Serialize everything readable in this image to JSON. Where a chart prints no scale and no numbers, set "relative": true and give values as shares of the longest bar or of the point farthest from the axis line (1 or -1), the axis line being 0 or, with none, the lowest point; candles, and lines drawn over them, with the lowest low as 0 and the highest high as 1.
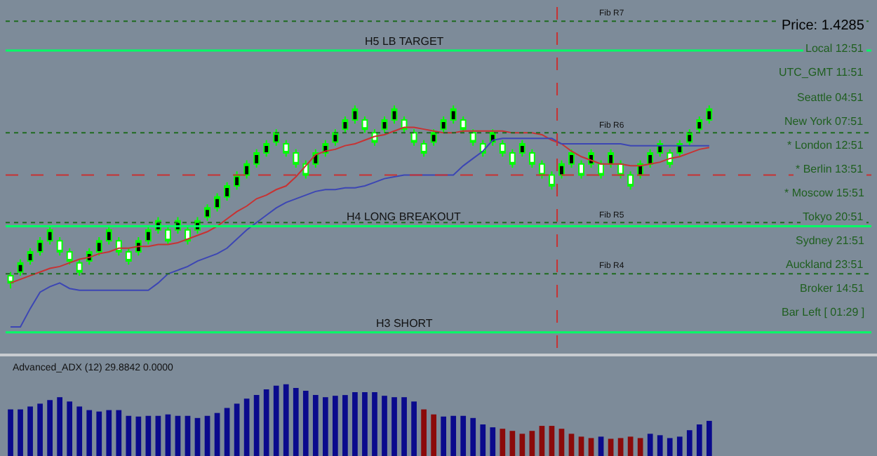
{
  "chart_data": [
    {
      "type": "candlestick",
      "relative": true,
      "categories": [
        null,
        null,
        null,
        null,
        null,
        null,
        null,
        null,
        null,
        null,
        null,
        null,
        null,
        null,
        null,
        null,
        null,
        null,
        null,
        null,
        null,
        null,
        null,
        null,
        null,
        null,
        null,
        null,
        null,
        null,
        null,
        null,
        null,
        null,
        null,
        null,
        null,
        null,
        null,
        null,
        null,
        null,
        null,
        null,
        null,
        null,
        null,
        null,
        null,
        null,
        null,
        null,
        null,
        null,
        null,
        null,
        null,
        null,
        null,
        null,
        null,
        null,
        null,
        null,
        null,
        null,
        null,
        null,
        null,
        null,
        null,
        null
      ],
      "ohlc": [
        [
          0.07,
          0.09,
          0.0,
          0.03
        ],
        [
          0.09,
          0.16,
          0.07,
          0.14
        ],
        [
          0.15,
          0.22,
          0.13,
          0.2
        ],
        [
          0.2,
          0.28,
          0.18,
          0.26
        ],
        [
          0.26,
          0.34,
          0.24,
          0.32
        ],
        [
          0.26,
          0.28,
          0.18,
          0.2
        ],
        [
          0.2,
          0.22,
          0.13,
          0.15
        ],
        [
          0.14,
          0.16,
          0.07,
          0.09
        ],
        [
          0.15,
          0.22,
          0.13,
          0.2
        ],
        [
          0.2,
          0.28,
          0.18,
          0.26
        ],
        [
          0.26,
          0.34,
          0.24,
          0.32
        ],
        [
          0.26,
          0.28,
          0.18,
          0.2
        ],
        [
          0.2,
          0.22,
          0.13,
          0.15
        ],
        [
          0.2,
          0.28,
          0.18,
          0.26
        ],
        [
          0.26,
          0.34,
          0.24,
          0.32
        ],
        [
          0.32,
          0.39,
          0.3,
          0.37
        ],
        [
          0.32,
          0.34,
          0.24,
          0.26
        ],
        [
          0.32,
          0.39,
          0.3,
          0.37
        ],
        [
          0.32,
          0.34,
          0.24,
          0.26
        ],
        [
          0.32,
          0.39,
          0.3,
          0.37
        ],
        [
          0.39,
          0.46,
          0.37,
          0.44
        ],
        [
          0.44,
          0.52,
          0.42,
          0.5
        ],
        [
          0.5,
          0.58,
          0.48,
          0.56
        ],
        [
          0.56,
          0.64,
          0.54,
          0.62
        ],
        [
          0.62,
          0.7,
          0.6,
          0.68
        ],
        [
          0.68,
          0.76,
          0.66,
          0.74
        ],
        [
          0.74,
          0.81,
          0.72,
          0.79
        ],
        [
          0.8,
          0.87,
          0.78,
          0.85
        ],
        [
          0.79,
          0.81,
          0.72,
          0.74
        ],
        [
          0.74,
          0.76,
          0.66,
          0.68
        ],
        [
          0.68,
          0.7,
          0.6,
          0.62
        ],
        [
          0.68,
          0.76,
          0.66,
          0.74
        ],
        [
          0.74,
          0.81,
          0.72,
          0.79
        ],
        [
          0.8,
          0.87,
          0.78,
          0.85
        ],
        [
          0.87,
          0.94,
          0.85,
          0.92
        ],
        [
          0.92,
          1.0,
          0.9,
          0.98
        ],
        [
          0.92,
          0.94,
          0.85,
          0.87
        ],
        [
          0.85,
          0.87,
          0.78,
          0.8
        ],
        [
          0.87,
          0.94,
          0.85,
          0.92
        ],
        [
          0.92,
          1.0,
          0.9,
          0.98
        ],
        [
          0.92,
          0.94,
          0.85,
          0.87
        ],
        [
          0.85,
          0.87,
          0.78,
          0.8
        ],
        [
          0.79,
          0.81,
          0.72,
          0.74
        ],
        [
          0.8,
          0.87,
          0.78,
          0.85
        ],
        [
          0.87,
          0.94,
          0.85,
          0.92
        ],
        [
          0.92,
          1.0,
          0.9,
          0.98
        ],
        [
          0.92,
          0.94,
          0.85,
          0.87
        ],
        [
          0.85,
          0.87,
          0.78,
          0.8
        ],
        [
          0.79,
          0.81,
          0.72,
          0.74
        ],
        [
          0.8,
          0.87,
          0.78,
          0.85
        ],
        [
          0.79,
          0.81,
          0.72,
          0.74
        ],
        [
          0.74,
          0.76,
          0.66,
          0.68
        ],
        [
          0.74,
          0.81,
          0.72,
          0.79
        ],
        [
          0.74,
          0.76,
          0.66,
          0.68
        ],
        [
          0.68,
          0.7,
          0.6,
          0.62
        ],
        [
          0.62,
          0.64,
          0.54,
          0.56
        ],
        [
          0.62,
          0.7,
          0.6,
          0.68
        ],
        [
          0.68,
          0.76,
          0.66,
          0.74
        ],
        [
          0.68,
          0.7,
          0.6,
          0.62
        ],
        [
          0.68,
          0.76,
          0.66,
          0.74
        ],
        [
          0.68,
          0.7,
          0.6,
          0.62
        ],
        [
          0.68,
          0.76,
          0.66,
          0.74
        ],
        [
          0.68,
          0.7,
          0.6,
          0.62
        ],
        [
          0.62,
          0.64,
          0.54,
          0.56
        ],
        [
          0.62,
          0.7,
          0.6,
          0.68
        ],
        [
          0.68,
          0.76,
          0.66,
          0.74
        ],
        [
          0.74,
          0.81,
          0.72,
          0.79
        ],
        [
          0.74,
          0.76,
          0.66,
          0.68
        ],
        [
          0.74,
          0.81,
          0.72,
          0.79
        ],
        [
          0.8,
          0.87,
          0.78,
          0.85
        ],
        [
          0.87,
          0.94,
          0.85,
          0.92
        ],
        [
          0.92,
          1.0,
          0.9,
          0.98
        ]
      ],
      "series": [
        {
          "type": "line",
          "color": "#c83232",
          "values": [
            0.03,
            0.05,
            0.07,
            0.09,
            0.11,
            0.12,
            0.14,
            0.16,
            0.17,
            0.19,
            0.2,
            0.22,
            0.22,
            0.23,
            0.23,
            0.24,
            0.24,
            0.25,
            0.27,
            0.29,
            0.31,
            0.34,
            0.38,
            0.42,
            0.45,
            0.49,
            0.51,
            0.54,
            0.56,
            0.61,
            0.67,
            0.73,
            0.75,
            0.76,
            0.78,
            0.79,
            0.81,
            0.83,
            0.84,
            0.86,
            0.88,
            0.88,
            0.87,
            0.86,
            0.85,
            0.85,
            0.86,
            0.86,
            0.86,
            0.86,
            0.86,
            0.85,
            0.85,
            0.85,
            0.84,
            0.81,
            0.79,
            0.75,
            0.72,
            0.7,
            0.68,
            0.68,
            0.68,
            0.67,
            0.67,
            0.68,
            0.69,
            0.71,
            0.72,
            0.74,
            0.76,
            0.77
          ]
        },
        {
          "type": "line",
          "color": "#3c46b4",
          "values": [
            -0.21,
            -0.21,
            -0.11,
            -0.02,
            0.01,
            0.03,
            0.0,
            -0.01,
            -0.01,
            -0.01,
            -0.01,
            -0.01,
            -0.01,
            -0.01,
            -0.01,
            0.03,
            0.08,
            0.1,
            0.12,
            0.15,
            0.17,
            0.19,
            0.22,
            0.27,
            0.32,
            0.36,
            0.4,
            0.44,
            0.47,
            0.49,
            0.51,
            0.53,
            0.54,
            0.54,
            0.55,
            0.55,
            0.56,
            0.58,
            0.6,
            0.61,
            0.62,
            0.62,
            0.62,
            0.62,
            0.62,
            0.62,
            0.67,
            0.71,
            0.75,
            0.81,
            0.82,
            0.82,
            0.82,
            0.82,
            0.82,
            0.82,
            0.79,
            0.79,
            0.79,
            0.79,
            0.79,
            0.79,
            0.79,
            0.78,
            0.78,
            0.78,
            0.78,
            0.78,
            0.78,
            0.78,
            0.78,
            0.78
          ]
        }
      ],
      "ref_lines": [
        {
          "axis": "y",
          "value": 1.3,
          "label": "H5 LB TARGET",
          "color": "#00ff66",
          "line_style": "solid"
        },
        {
          "axis": "y",
          "value": 0.34,
          "label": "H4 LONG BREAKOUT",
          "color": "#00ff66",
          "line_style": "solid"
        },
        {
          "axis": "y",
          "value": -0.24,
          "label": "H3 SHORT",
          "color": "#00ff66",
          "line_style": "solid"
        },
        {
          "axis": "y",
          "value": 1.46,
          "label": "Fib R7",
          "color": "#1f6b1f",
          "line_style": "dotted"
        },
        {
          "axis": "y",
          "value": 0.85,
          "label": "Fib R6",
          "color": "#1f6b1f",
          "line_style": "dotted"
        },
        {
          "axis": "y",
          "value": 0.36,
          "label": "Fib R5",
          "color": "#1f6b1f",
          "line_style": "dotted"
        },
        {
          "axis": "y",
          "value": 0.08,
          "label": "Fib R4",
          "color": "#1f6b1f",
          "line_style": "dotted"
        },
        {
          "axis": "y",
          "value": 0.62,
          "color": "#c83232",
          "line_style": "dashed"
        }
      ],
      "annotations": [
        "Price: 1.4285",
        "Local 12:51",
        "UTC_GMT 11:51",
        "Seattle 04:51",
        "New York 07:51",
        "* London 12:51",
        "* Berlin 13:51",
        "* Moscow 15:51",
        "Tokyo 20:51",
        "Sydney 21:51",
        "Auckland 23:51",
        "Broker 14:51",
        "Bar Left [ 01:29 ]"
      ]
    },
    {
      "type": "bar",
      "relative": true,
      "title": "Advanced_ADX (12) 29.8842 0.0000",
      "categories": [
        null,
        null,
        null,
        null,
        null,
        null,
        null,
        null,
        null,
        null,
        null,
        null,
        null,
        null,
        null,
        null,
        null,
        null,
        null,
        null,
        null,
        null,
        null,
        null,
        null,
        null,
        null,
        null,
        null,
        null,
        null,
        null,
        null,
        null,
        null,
        null,
        null,
        null,
        null,
        null,
        null,
        null,
        null,
        null,
        null,
        null,
        null,
        null,
        null,
        null,
        null,
        null,
        null,
        null,
        null,
        null,
        null,
        null,
        null,
        null,
        null,
        null,
        null,
        null,
        null,
        null,
        null,
        null,
        null,
        null,
        null,
        null
      ],
      "values": [
        0.65,
        0.65,
        0.69,
        0.73,
        0.78,
        0.82,
        0.76,
        0.69,
        0.64,
        0.62,
        0.64,
        0.64,
        0.56,
        0.55,
        0.56,
        0.56,
        0.58,
        0.56,
        0.56,
        0.53,
        0.56,
        0.6,
        0.67,
        0.73,
        0.8,
        0.85,
        0.93,
        0.98,
        1.0,
        0.95,
        0.91,
        0.85,
        0.82,
        0.84,
        0.85,
        0.89,
        0.89,
        0.89,
        0.84,
        0.82,
        0.82,
        0.76,
        0.65,
        0.58,
        0.55,
        0.56,
        0.56,
        0.53,
        0.44,
        0.4,
        0.38,
        0.35,
        0.31,
        0.35,
        0.42,
        0.42,
        0.38,
        0.31,
        0.27,
        0.25,
        0.27,
        0.24,
        0.25,
        0.27,
        0.25,
        0.31,
        0.29,
        0.25,
        0.27,
        0.36,
        0.44,
        0.49
      ],
      "colors": [
        "#0a0a8c",
        "#0a0a8c",
        "#0a0a8c",
        "#0a0a8c",
        "#0a0a8c",
        "#0a0a8c",
        "#0a0a8c",
        "#0a0a8c",
        "#0a0a8c",
        "#0a0a8c",
        "#0a0a8c",
        "#0a0a8c",
        "#0a0a8c",
        "#0a0a8c",
        "#0a0a8c",
        "#0a0a8c",
        "#0a0a8c",
        "#0a0a8c",
        "#0a0a8c",
        "#0a0a8c",
        "#0a0a8c",
        "#0a0a8c",
        "#0a0a8c",
        "#0a0a8c",
        "#0a0a8c",
        "#0a0a8c",
        "#0a0a8c",
        "#0a0a8c",
        "#0a0a8c",
        "#0a0a8c",
        "#0a0a8c",
        "#0a0a8c",
        "#0a0a8c",
        "#0a0a8c",
        "#0a0a8c",
        "#0a0a8c",
        "#0a0a8c",
        "#0a0a8c",
        "#0a0a8c",
        "#0a0a8c",
        "#0a0a8c",
        "#0a0a8c",
        "#8b0a0a",
        "#8b0a0a",
        "#0a0a8c",
        "#0a0a8c",
        "#0a0a8c",
        "#0a0a8c",
        "#0a0a8c",
        "#0a0a8c",
        "#8b0a0a",
        "#8b0a0a",
        "#8b0a0a",
        "#8b0a0a",
        "#8b0a0a",
        "#8b0a0a",
        "#8b0a0a",
        "#8b0a0a",
        "#8b0a0a",
        "#8b0a0a",
        "#0a0a8c",
        "#8b0a0a",
        "#8b0a0a",
        "#8b0a0a",
        "#8b0a0a",
        "#0a0a8c",
        "#0a0a8c",
        "#0a0a8c",
        "#0a0a8c",
        "#0a0a8c",
        "#0a0a8c",
        "#0a0a8c"
      ]
    }
  ]
}
